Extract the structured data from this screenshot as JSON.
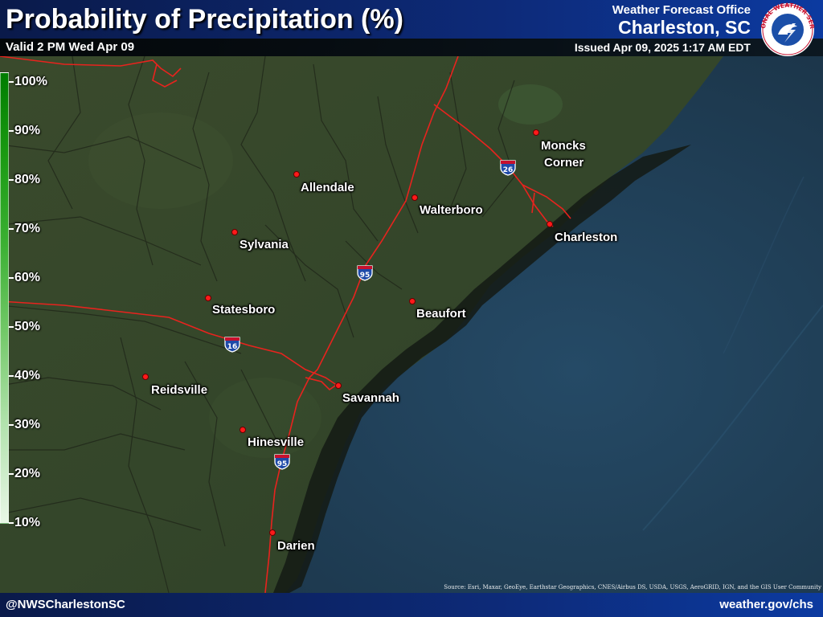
{
  "header": {
    "title": "Probability of Precipitation (%)",
    "valid": "Valid 2 PM Wed Apr 09",
    "office_line": "Weather Forecast Office",
    "office_city": "Charleston, SC",
    "issued": "Issued Apr 09, 2025 1:17 AM EDT",
    "logo_text": "NATIONAL WEATHER SERVICE",
    "logo_icon": "nws-logo-icon"
  },
  "legend": {
    "labels": [
      "100%",
      "90%",
      "80%",
      "70%",
      "60%",
      "50%",
      "40%",
      "30%",
      "20%",
      "10%"
    ],
    "top_color": "#007c00",
    "bottom_color": "#e8f7e6"
  },
  "cities": [
    {
      "name": "Allendale"
    },
    {
      "name": "Walterboro"
    },
    {
      "name": "Moncks Corner",
      "line1": "Moncks",
      "line2": "Corner"
    },
    {
      "name": "Charleston"
    },
    {
      "name": "Sylvania"
    },
    {
      "name": "Statesboro"
    },
    {
      "name": "Beaufort"
    },
    {
      "name": "Reidsville"
    },
    {
      "name": "Savannah"
    },
    {
      "name": "Hinesville"
    },
    {
      "name": "Darien"
    }
  ],
  "interstates": [
    {
      "number": "26"
    },
    {
      "number": "95"
    },
    {
      "number": "16"
    },
    {
      "number": "95"
    }
  ],
  "colors": {
    "city_marker": "#ff1a1a",
    "highway": "#e8231e",
    "header_blue": "#0d2a78",
    "ocean": "#1c3446"
  },
  "source": "Source: Esri, Maxar, GeoEye, Earthstar Geographics, CNES/Airbus DS, USDA, USGS, AeroGRID, IGN, and the GIS User Community",
  "footer": {
    "left": "@NWSCharlestonSC",
    "right": "weather.gov/chs"
  }
}
